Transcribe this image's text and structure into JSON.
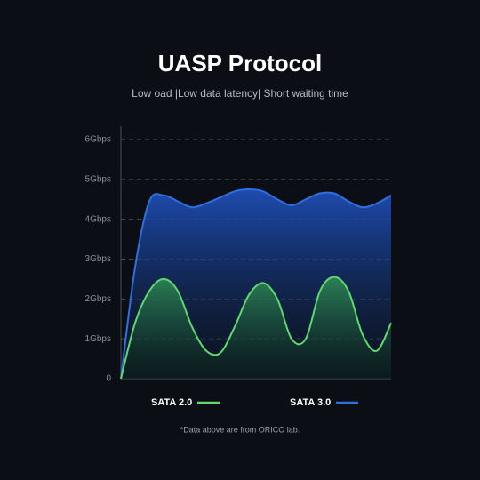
{
  "chart_data": {
    "type": "area",
    "title": "UASP Protocol",
    "subtitle": "Low oad |Low data latency| Short waiting time",
    "note": "*Data above are from ORICO lab.",
    "x": [
      0,
      1,
      2,
      3,
      4,
      5,
      6,
      7,
      8,
      9,
      10,
      11,
      12,
      13,
      14,
      15,
      16,
      17,
      18,
      19
    ],
    "xlim": [
      0,
      19
    ],
    "ylim": [
      0,
      6
    ],
    "yticks": [
      0,
      {
        "value": 1,
        "label": "1Gbps"
      },
      {
        "value": 2,
        "label": "2Gbps"
      },
      {
        "value": 3,
        "label": "3Gbps"
      },
      {
        "value": 4,
        "label": "4Gbps"
      },
      {
        "value": 5,
        "label": "5Gbps"
      },
      {
        "value": 6,
        "label": "6Gbps"
      }
    ],
    "grid": true,
    "series": [
      {
        "name": "SATA 2.0",
        "color": "#5fd86f",
        "values": [
          0,
          1.4,
          2.2,
          2.5,
          2.2,
          1.3,
          0.7,
          0.65,
          1.3,
          2.1,
          2.4,
          2.0,
          1.0,
          1.0,
          2.2,
          2.55,
          2.2,
          1.1,
          0.7,
          1.4
        ]
      },
      {
        "name": "SATA 3.0",
        "color": "#2f6fe0",
        "values": [
          0,
          2.8,
          4.45,
          4.6,
          4.45,
          4.3,
          4.4,
          4.55,
          4.7,
          4.75,
          4.7,
          4.5,
          4.35,
          4.5,
          4.65,
          4.65,
          4.45,
          4.3,
          4.4,
          4.6
        ]
      }
    ]
  }
}
